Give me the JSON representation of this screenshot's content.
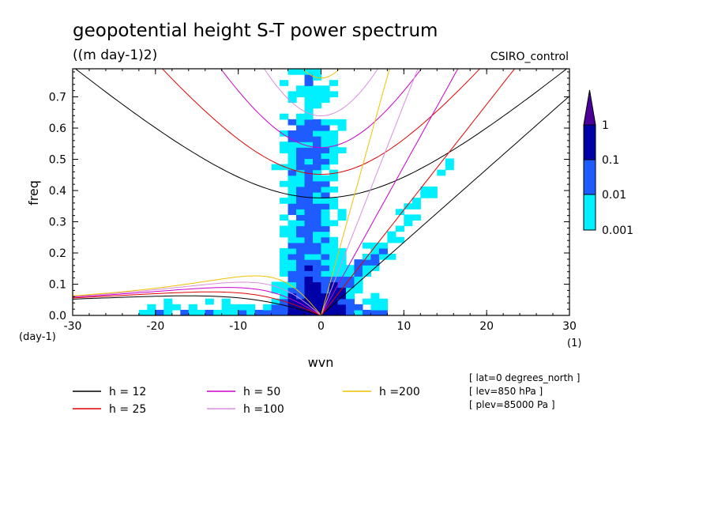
{
  "chart_data": {
    "type": "heatmap",
    "title": "geopotential height S-T power spectrum",
    "units": "((m day-1)2)",
    "model": "CSIRO_control",
    "xlabel": "wvn",
    "ylabel": "freq",
    "x_unit_label": "(1)",
    "y_unit_label": "(day-1)",
    "xlim": [
      -30,
      30
    ],
    "ylim": [
      0,
      0.79
    ],
    "x_ticks": [
      "-30",
      "-20",
      "-10",
      "0",
      "10",
      "20",
      "30"
    ],
    "y_ticks": [
      "0.0",
      "0.1",
      "0.2",
      "0.3",
      "0.4",
      "0.5",
      "0.6",
      "0.7"
    ],
    "colorbar": {
      "labels": [
        "1",
        "0.1",
        "0.01",
        "0.001"
      ],
      "colors": [
        "#0000a8",
        "#1e5cff",
        "#00f0ff",
        "#4a0099"
      ],
      "levels": [
        0.001,
        0.01,
        0.1,
        1
      ]
    },
    "colors": {
      "lvl1": "#00f0ff",
      "lvl2": "#1e5cff",
      "lvl3": "#0000a8",
      "lvl4": "#4a0099"
    },
    "dispersion_curves": [
      {
        "label": "h = 12",
        "h": 12,
        "color": "#000000"
      },
      {
        "label": "h = 25",
        "h": 25,
        "color": "#e00000"
      },
      {
        "label": "h = 50",
        "h": 50,
        "color": "#cc00cc"
      },
      {
        "label": "h =100",
        "h": 100,
        "color": "#d88ee0"
      },
      {
        "label": "h =200",
        "h": 200,
        "color": "#f0c000"
      }
    ],
    "metadata_lines": [
      "[ lat=0 degrees_north ]",
      "[ lev=850 hPa ]",
      "[ plev=85000 Pa ]"
    ]
  }
}
